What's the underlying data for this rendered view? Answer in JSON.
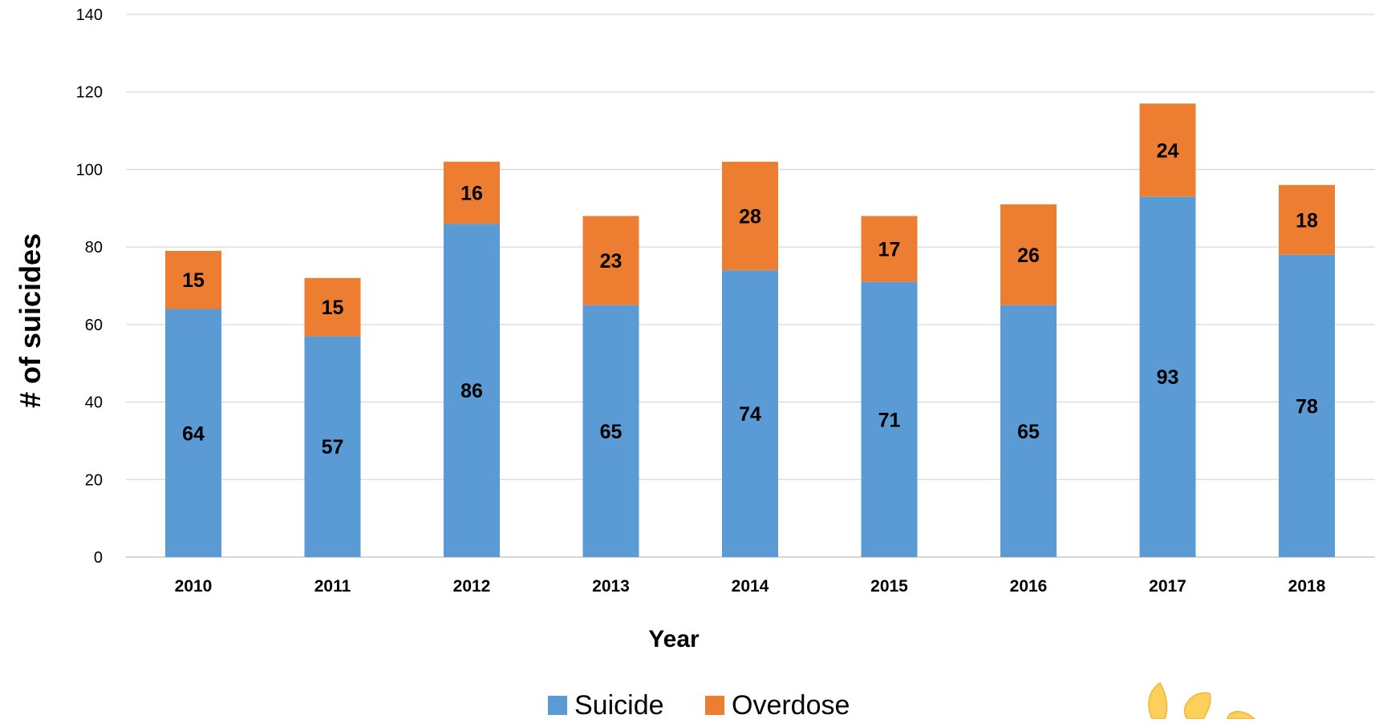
{
  "chart_data": {
    "type": "bar",
    "stacked": true,
    "categories": [
      "2010",
      "2011",
      "2012",
      "2013",
      "2014",
      "2015",
      "2016",
      "2017",
      "2018"
    ],
    "series": [
      {
        "name": "Suicide",
        "color": "#5B9BD5",
        "values": [
          64,
          57,
          86,
          65,
          74,
          71,
          65,
          93,
          78
        ]
      },
      {
        "name": "Overdose",
        "color": "#ED7D31",
        "values": [
          15,
          15,
          16,
          23,
          28,
          17,
          26,
          24,
          18
        ]
      }
    ],
    "xlabel": "Year",
    "ylabel": "# of suicides",
    "ylim": [
      0,
      140
    ],
    "yticks": [
      0,
      20,
      40,
      60,
      80,
      100,
      120,
      140
    ],
    "grid": true,
    "legend_position": "bottom",
    "data_labels": true
  },
  "decoration": {
    "logo_icon": "flower-logo-icon"
  }
}
